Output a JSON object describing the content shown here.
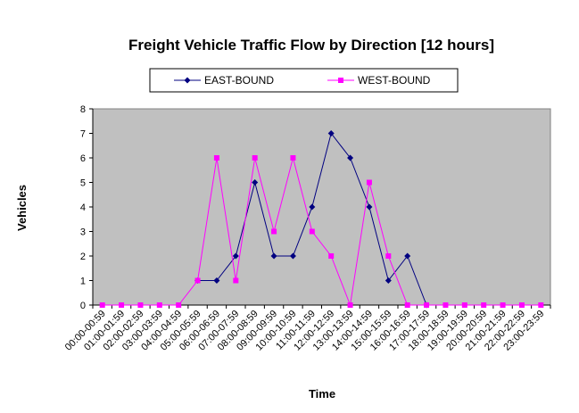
{
  "chart_data": {
    "type": "line",
    "title": "Freight Vehicle Traffic Flow by Direction [12 hours]",
    "xlabel": "Time",
    "ylabel": "Vehicles",
    "ylim": [
      0,
      8
    ],
    "yticks": [
      0,
      1,
      2,
      3,
      4,
      5,
      6,
      7,
      8
    ],
    "grid": false,
    "legend_position": "top",
    "plot_background": "#C0C0C0",
    "categories": [
      "00:00-00:59",
      "01:00-01:59",
      "02:00-02:59",
      "03:00-03:59",
      "04:00-04:59",
      "05:00-05:59",
      "06:00-06:59",
      "07:00-07:59",
      "08:00-08:59",
      "09:00-09:59",
      "10:00-10:59",
      "11:00-11:59",
      "12:00-12:59",
      "13:00-13:59",
      "14:00-14:59",
      "15:00-15:59",
      "16:00-16:59",
      "17:00-17:59",
      "18:00-18:59",
      "19:00-19:59",
      "20:00-20:59",
      "21:00-21:59",
      "22:00-22:59",
      "23:00-23:59"
    ],
    "series": [
      {
        "name": "EAST-BOUND",
        "color": "#000080",
        "marker": "diamond",
        "values": [
          null,
          null,
          null,
          null,
          null,
          1,
          1,
          2,
          5,
          2,
          2,
          4,
          7,
          6,
          4,
          1,
          2,
          0,
          null,
          null,
          null,
          null,
          null,
          null
        ]
      },
      {
        "name": "WEST-BOUND",
        "color": "#FF00FF",
        "marker": "square",
        "values": [
          0,
          0,
          0,
          0,
          0,
          1,
          6,
          1,
          6,
          3,
          6,
          3,
          2,
          0,
          5,
          2,
          0,
          0,
          0,
          0,
          0,
          0,
          0,
          0
        ]
      }
    ]
  }
}
